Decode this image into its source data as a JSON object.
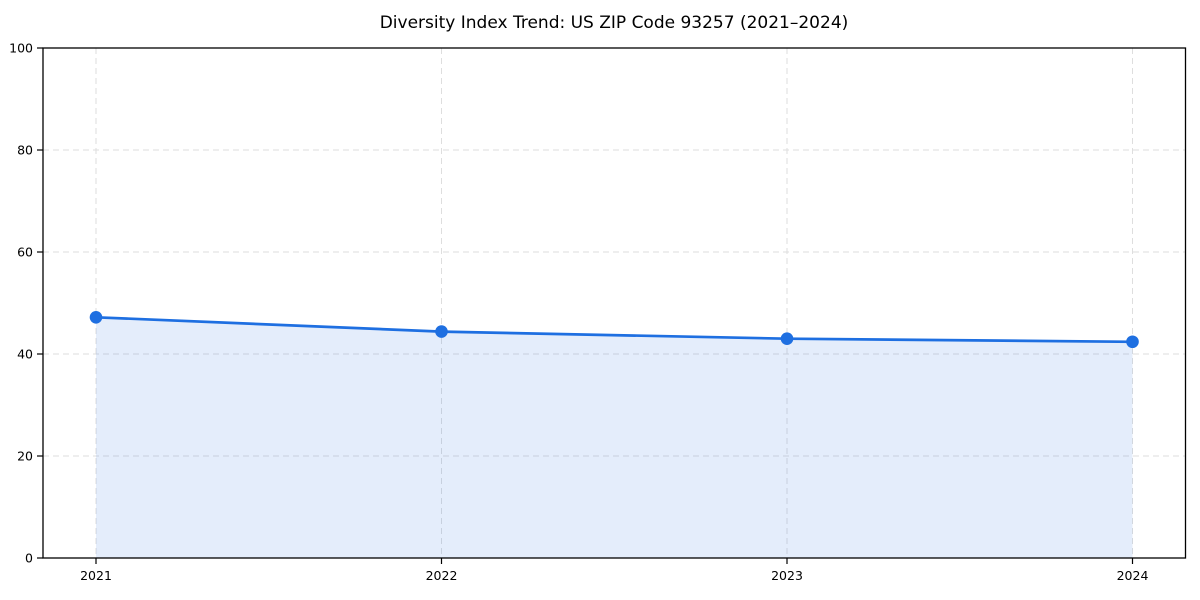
{
  "chart_data": {
    "type": "line",
    "title": "Diversity Index Trend: US ZIP Code 93257 (2021–2024)",
    "xlabel": "",
    "ylabel": "",
    "categories": [
      "2021",
      "2022",
      "2023",
      "2024"
    ],
    "series": [
      {
        "name": "Diversity Index",
        "values": [
          47.2,
          44.4,
          43.0,
          42.4
        ]
      }
    ],
    "ylim": [
      0,
      100
    ],
    "y_ticks": [
      0,
      20,
      40,
      60,
      80,
      100
    ],
    "grid": true,
    "grid_style": "dashed",
    "legend_position": "none",
    "area_fill": true,
    "marker": "circle",
    "colors": {
      "line": "#1e6fe1",
      "marker": "#1e6fe1",
      "fill": "#1e6fe1",
      "fill_opacity": 0.12,
      "grid": "#dedede",
      "axis": "#000000",
      "tick_label": "#000000",
      "background": "#ffffff"
    }
  }
}
